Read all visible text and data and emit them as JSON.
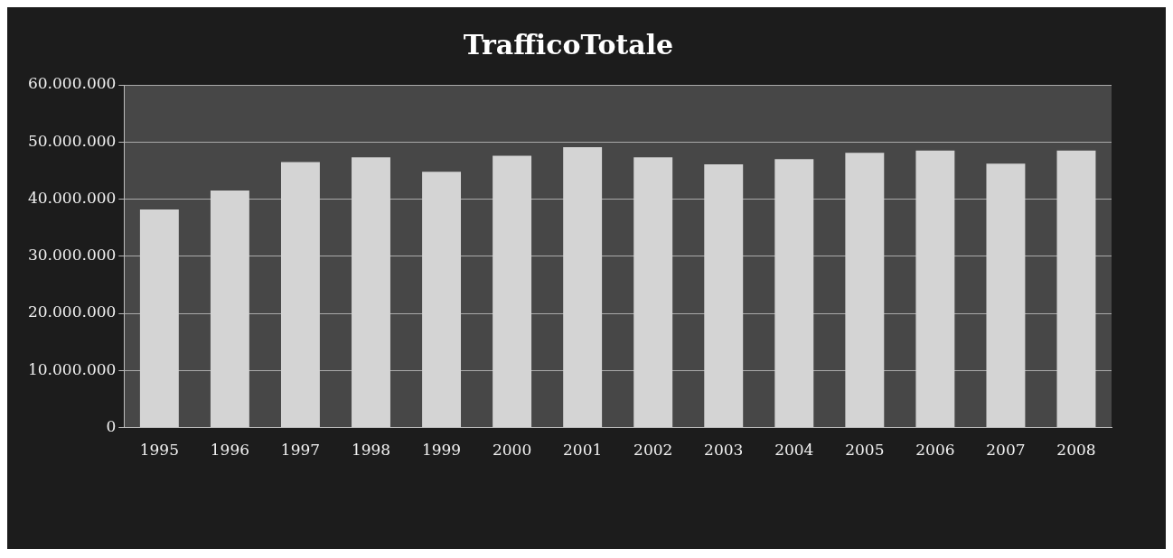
{
  "chart_data": {
    "type": "bar",
    "title": "TrafficoTotale",
    "categories": [
      "1995",
      "1996",
      "1997",
      "1998",
      "1999",
      "2000",
      "2001",
      "2002",
      "2003",
      "2004",
      "2005",
      "2006",
      "2007",
      "2008"
    ],
    "values": [
      38200000,
      41500000,
      46500000,
      47300000,
      44800000,
      47600000,
      49100000,
      47300000,
      46100000,
      47000000,
      48100000,
      48500000,
      46200000,
      48500000
    ],
    "color": "#d4d4d4",
    "ylim": [
      0,
      60000000
    ],
    "yticks": [
      {
        "value": 0,
        "label": "0"
      },
      {
        "value": 10000000,
        "label": "10.000.000"
      },
      {
        "value": 20000000,
        "label": "20.000.000"
      },
      {
        "value": 30000000,
        "label": "30.000.000"
      },
      {
        "value": 40000000,
        "label": "40.000.000"
      },
      {
        "value": 50000000,
        "label": "50.000.000"
      },
      {
        "value": 60000000,
        "label": "60.000.000"
      }
    ],
    "grid": "y"
  }
}
